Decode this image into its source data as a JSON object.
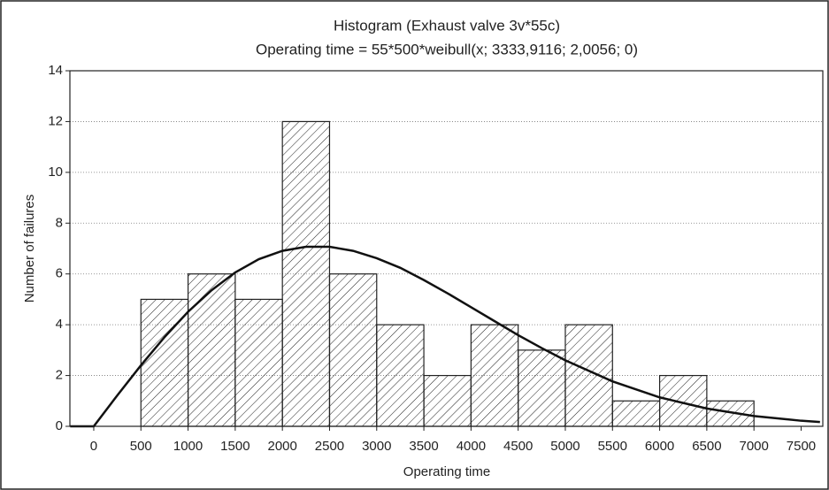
{
  "chart_data": {
    "type": "histogram",
    "title": "Histogram (Exhaust valve 3v*55c)",
    "subtitle": "Operating time = 55*500*weibull(x; 3333,9116; 2,0056; 0)",
    "xlabel": "Operating time",
    "ylabel": "Number of failures",
    "bins": [
      500,
      1000,
      1500,
      2000,
      2500,
      3000,
      3500,
      4000,
      4500,
      5000,
      5500,
      6000,
      6500,
      7000
    ],
    "counts": [
      5,
      6,
      5,
      12,
      6,
      4,
      2,
      4,
      3,
      4,
      1,
      2,
      1
    ],
    "curve": {
      "x": [
        -250,
        0,
        250,
        500,
        750,
        1000,
        1250,
        1500,
        1750,
        2000,
        2250,
        2500,
        2750,
        3000,
        3250,
        3500,
        3750,
        4000,
        4250,
        4500,
        4750,
        5000,
        5500,
        6000,
        6500,
        7000,
        7500,
        7700
      ],
      "values": [
        0,
        0,
        1.22,
        2.4,
        3.51,
        4.51,
        5.36,
        6.06,
        6.58,
        6.91,
        7.07,
        7.07,
        6.91,
        6.62,
        6.24,
        5.76,
        5.24,
        4.69,
        4.14,
        3.59,
        3.08,
        2.6,
        1.77,
        1.14,
        0.7,
        0.405,
        0.22,
        0.17
      ],
      "color": "#111111"
    },
    "bar_color": "#222222",
    "xlim": [
      -253,
      7730
    ],
    "ylim": [
      0,
      14
    ],
    "xticks": [
      0,
      500,
      1000,
      1500,
      2000,
      2500,
      3000,
      3500,
      4000,
      4500,
      5000,
      5500,
      6000,
      6500,
      7000,
      7500
    ],
    "yticks": [
      0,
      2,
      4,
      6,
      8,
      10,
      12,
      14
    ],
    "grid": true
  }
}
